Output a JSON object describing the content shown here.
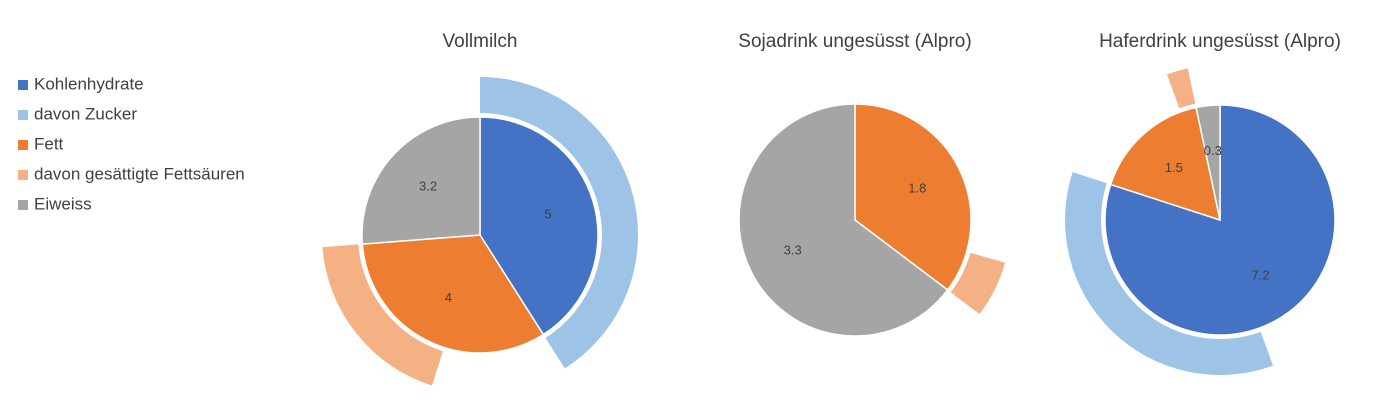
{
  "chart_data": {
    "type": "nested-pie",
    "categories": [
      "Kohlenhydrate",
      "davon Zucker",
      "Fett",
      "davon gesättigte Fettsäuren",
      "Eiweiss"
    ],
    "colors": [
      "#4472c4",
      "#9dc3e6",
      "#ed7d31",
      "#f4b183",
      "#a5a5a5"
    ],
    "ring": [
      false,
      true,
      false,
      true,
      false
    ],
    "pies": [
      {
        "title": "Vollmilch",
        "values": [
          5,
          5,
          4,
          2.3,
          3.2
        ]
      },
      {
        "title": "Sojadrink ungesüsst (Alpro)",
        "values": [
          0,
          0,
          1.8,
          0.3,
          3.3
        ]
      },
      {
        "title": "Haferdrink ungesüsst (Alpro)",
        "values": [
          7.2,
          3.2,
          1.5,
          0.2,
          0.3
        ]
      }
    ]
  }
}
